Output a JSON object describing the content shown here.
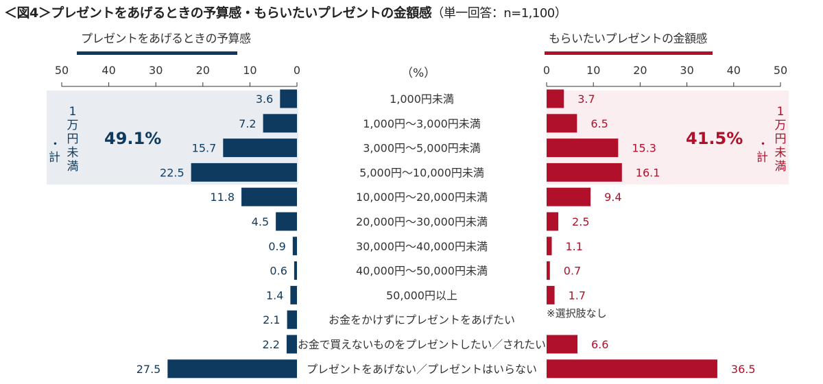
{
  "title": "＜図4＞プレゼントをあげるときの予算感・もらいたいプレゼントの金額感",
  "subtitle": "（単一回答：n=1,100）",
  "unit_label": "（%）",
  "note": "※選択肢なし",
  "colors": {
    "left": "#0e3a5f",
    "right": "#b0102a",
    "left_band": "#e9edf2",
    "right_band": "#fbeef1"
  },
  "left_summary": {
    "value": "49.1%",
    "label_chars": [
      "1",
      "万",
      "円",
      "未",
      "満"
    ],
    "dot": "・",
    "kei": "計"
  },
  "right_summary": {
    "value": "41.5%",
    "label_chars": [
      "1",
      "万",
      "円",
      "未",
      "満"
    ],
    "dot": "・",
    "kei": "計"
  },
  "chart_data": {
    "type": "bar",
    "orientation": "horizontal-butterfly",
    "title": "＜図4＞プレゼントをあげるときの予算感・もらいたいプレゼントの金額感（単一回答：n=1,100）",
    "xlabel": "（%）",
    "xlim": [
      0,
      50
    ],
    "ticks": [
      0,
      10,
      20,
      30,
      40,
      50
    ],
    "categories": [
      "1,000円未満",
      "1,000円～3,000円未満",
      "3,000円～5,000円未満",
      "5,000円～10,000円未満",
      "10,000円～20,000円未満",
      "20,000円～30,000円未満",
      "30,000円～40,000円未満",
      "40,000円～50,000円未満",
      "50,000円以上",
      "お金をかけずにプレゼントをあげたい",
      "お金で買えないものをプレゼントしたい／されたい",
      "プレゼントをあげない／プレゼントはいらない"
    ],
    "series": [
      {
        "name": "プレゼントをあげるときの予算感",
        "side": "left",
        "values": [
          3.6,
          7.2,
          15.7,
          22.5,
          11.8,
          4.5,
          0.9,
          0.6,
          1.4,
          2.1,
          2.2,
          27.5
        ]
      },
      {
        "name": "もらいたいプレゼントの金額感",
        "side": "right",
        "values": [
          3.7,
          6.5,
          15.3,
          16.1,
          9.4,
          2.5,
          1.1,
          0.7,
          1.7,
          null,
          6.6,
          36.5
        ]
      }
    ],
    "summaries": [
      {
        "series": "プレゼントをあげるときの予算感",
        "label": "1万円未満・計",
        "value": 49.1
      },
      {
        "series": "もらいたいプレゼントの金額感",
        "label": "1万円未満・計",
        "value": 41.5
      }
    ],
    "grid": false,
    "legend": "top"
  }
}
